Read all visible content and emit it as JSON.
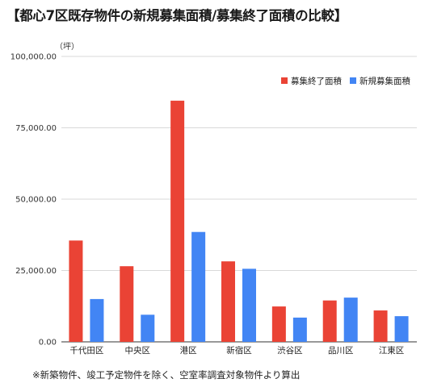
{
  "title": "【都心7区既存物件の新規募集面積/募集終了面積の比較】",
  "unit_label": "（坪）",
  "footnote": "※新築物件、竣工予定物件を除く、空室率調査対象物件より算出",
  "chart_data": {
    "type": "bar",
    "title": "【都心7区既存物件の新規募集面積/募集終了面積の比較】",
    "ylabel": "（坪）",
    "xlabel": "",
    "ylim": [
      0,
      100000
    ],
    "yticks": [
      0,
      25000,
      50000,
      75000,
      100000
    ],
    "ytick_labels": [
      "0.00",
      "25,000.00",
      "50,000.00",
      "75,000.00",
      "100,000.00"
    ],
    "grid": true,
    "legend": "top-right",
    "categories": [
      "千代田区",
      "中央区",
      "港区",
      "新宿区",
      "渋谷区",
      "品川区",
      "江東区"
    ],
    "series": [
      {
        "name": "募集終了面積",
        "color": "#ea4335",
        "values": [
          35500,
          26500,
          84500,
          28200,
          12400,
          14500,
          11000
        ]
      },
      {
        "name": "新規募集面積",
        "color": "#4285f4",
        "values": [
          15000,
          9500,
          38500,
          25600,
          8500,
          15500,
          9000
        ]
      }
    ]
  }
}
